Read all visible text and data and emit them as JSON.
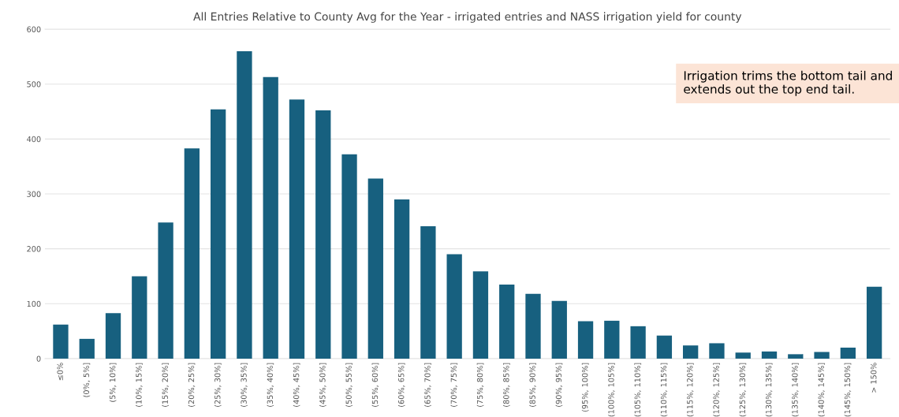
{
  "chart_data": {
    "type": "bar",
    "title": "All Entries Relative to County Avg for the Year - irrigated entries and NASS irrigation yield for county",
    "categories": [
      "≤0%",
      "(0%, 5%]",
      "(5%, 10%]",
      "(10%, 15%]",
      "(15%, 20%]",
      "(20%, 25%]",
      "(25%, 30%]",
      "(30%, 35%]",
      "(35%, 40%]",
      "(40%, 45%]",
      "(45%, 50%]",
      "(50%, 55%]",
      "(55%, 60%]",
      "(60%, 65%]",
      "(65%, 70%]",
      "(70%, 75%]",
      "(75%, 80%]",
      "(80%, 85%]",
      "(85%, 90%]",
      "(90%, 95%]",
      "(95%, 100%]",
      "(100%, 105%]",
      "(105%, 110%]",
      "(110%, 115%]",
      "(115%, 120%]",
      "(120%, 125%]",
      "(125%, 130%]",
      "(130%, 135%]",
      "(135%, 140%]",
      "(140%, 145%]",
      "(145%, 150%]",
      "> 150%"
    ],
    "values": [
      62,
      36,
      83,
      150,
      248,
      383,
      454,
      560,
      513,
      472,
      452,
      372,
      328,
      290,
      241,
      190,
      159,
      135,
      118,
      105,
      68,
      69,
      59,
      42,
      24,
      28,
      11,
      13,
      8,
      12,
      20,
      131
    ],
    "color": "#17607f",
    "ylim": [
      0,
      600
    ],
    "yticks": [
      0,
      100,
      200,
      300,
      400,
      500,
      600
    ],
    "grid": "y",
    "annotations": [
      "Irrigation trims the bottom tail and extends out the top end tail."
    ]
  }
}
